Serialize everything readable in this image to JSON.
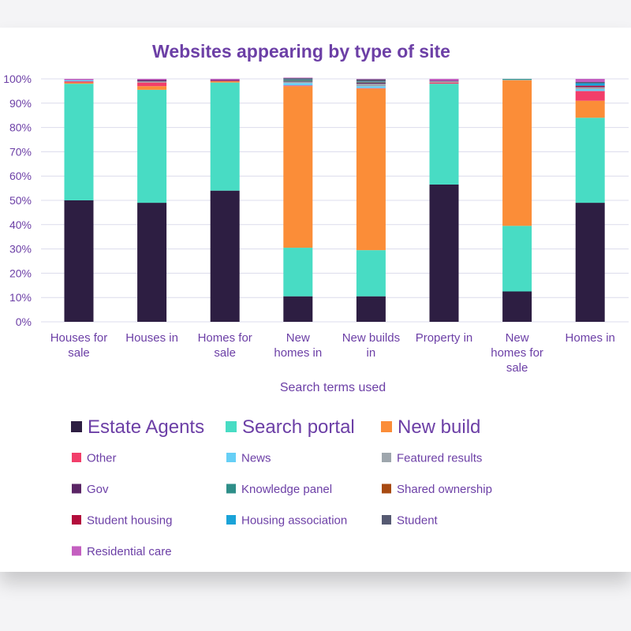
{
  "chart_data": {
    "type": "bar",
    "stacked": true,
    "title": "Websites appearing by type of site",
    "xlabel": "Search terms used",
    "ylabel": "",
    "ylim": [
      0,
      100
    ],
    "yticks": [
      "0%",
      "10%",
      "20%",
      "30%",
      "40%",
      "50%",
      "60%",
      "70%",
      "80%",
      "90%",
      "100%"
    ],
    "categories": [
      [
        "Houses for",
        "sale"
      ],
      [
        "Houses in"
      ],
      [
        "Homes for",
        "sale"
      ],
      [
        "New",
        "homes in"
      ],
      [
        "New builds",
        "in"
      ],
      [
        "Property in"
      ],
      [
        "New",
        "homes for",
        "sale"
      ],
      [
        "Homes in"
      ]
    ],
    "series": [
      {
        "name": "Estate Agents",
        "color": "#2d1e42",
        "values": [
          50,
          49,
          54,
          10.5,
          10.5,
          56.5,
          12.5,
          49
        ]
      },
      {
        "name": "Search portal",
        "color": "#48dcc4",
        "values": [
          48,
          46.5,
          44.5,
          20,
          19,
          41.5,
          27,
          35
        ]
      },
      {
        "name": "New build",
        "color": "#fb8d38",
        "values": [
          0.5,
          1.5,
          0.5,
          66.5,
          66.5,
          0,
          60,
          7
        ]
      },
      {
        "name": "Other",
        "color": "#f23e6a",
        "values": [
          0.5,
          1.5,
          0.2,
          0.3,
          0.2,
          0.5,
          0,
          4
        ]
      },
      {
        "name": "News",
        "color": "#66cff6",
        "values": [
          0.5,
          0,
          0,
          1,
          0.8,
          0,
          0.2,
          0.8
        ]
      },
      {
        "name": "Featured results",
        "color": "#9ea6ad",
        "values": [
          0,
          0.5,
          0,
          0.5,
          1,
          0.5,
          0,
          0.7
        ]
      },
      {
        "name": "Gov",
        "color": "#5a2565",
        "values": [
          0,
          0.5,
          0.3,
          0.2,
          0.4,
          0.2,
          0,
          0.2
        ]
      },
      {
        "name": "Knowledge panel",
        "color": "#2e8e88",
        "values": [
          0,
          0,
          0,
          0.3,
          0.2,
          0,
          0.3,
          0
        ]
      },
      {
        "name": "Shared ownership",
        "color": "#a74a12",
        "values": [
          0,
          0,
          0,
          0.2,
          0.2,
          0,
          0,
          0
        ]
      },
      {
        "name": "Student housing",
        "color": "#b30d3c",
        "values": [
          0,
          0,
          0,
          0,
          0,
          0,
          0,
          0.5
        ]
      },
      {
        "name": "Housing association",
        "color": "#1aa3d8",
        "values": [
          0,
          0,
          0,
          0.3,
          0.2,
          0,
          0,
          1
        ]
      },
      {
        "name": "Student",
        "color": "#565a72",
        "values": [
          0,
          0,
          0,
          0.5,
          0.8,
          0,
          0,
          0.5
        ]
      },
      {
        "name": "Residential care",
        "color": "#c45fc0",
        "values": [
          0.5,
          0.5,
          0.5,
          0.2,
          0.2,
          0.8,
          0,
          1.3
        ]
      }
    ],
    "legend_position": "bottom",
    "grid": true
  }
}
